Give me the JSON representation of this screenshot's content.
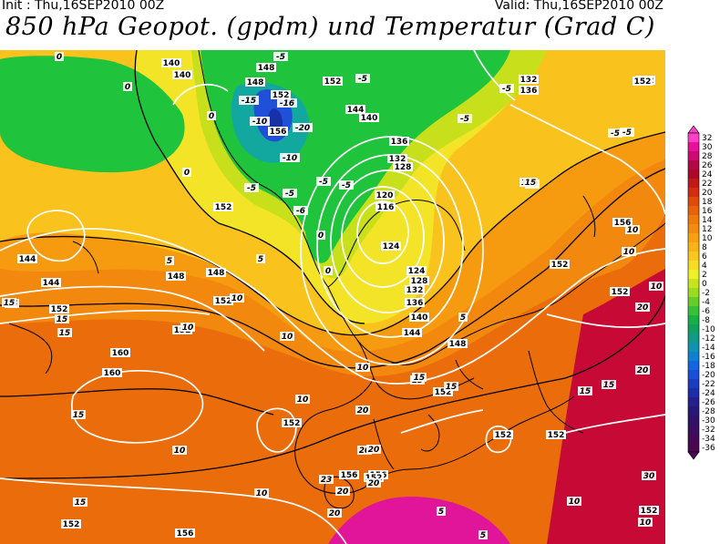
{
  "header": {
    "init": "Init : Thu,16SEP2010 00Z",
    "valid": "Valid: Thu,16SEP2010 00Z",
    "title": "850 hPa Geopot. (gpdm) und Temperatur (Grad C)"
  },
  "colors": {
    "warm_30": "#c2003a",
    "warm_20": "#d4300e",
    "warm_15": "#e25c0a",
    "warm_12": "#f07a0c",
    "warm_10": "#f69a10",
    "warm_6": "#f9c21c",
    "warm_3": "#f4e428",
    "zero": "#c8e01c",
    "cool_m4": "#20c33c",
    "cool_m10": "#12a8a0",
    "cold_m16": "#2050d8",
    "cold_m20": "#1830a8",
    "magenta": "#e0159a",
    "geopot_line": "#ffffff",
    "iso_line": "#000000",
    "coast_line": "#000000"
  },
  "legend": {
    "labels": [
      "32",
      "30",
      "28",
      "26",
      "24",
      "22",
      "20",
      "18",
      "16",
      "14",
      "12",
      "10",
      "8",
      "6",
      "4",
      "2",
      "0",
      "-2",
      "-4",
      "-6",
      "-8",
      "-10",
      "-12",
      "-14",
      "-16",
      "-18",
      "-20",
      "-22",
      "-24",
      "-26",
      "-28",
      "-30",
      "-32",
      "-34",
      "-36"
    ],
    "colors": [
      "#ff40c8",
      "#e8109c",
      "#cc0a70",
      "#b20848",
      "#ac0a2a",
      "#c01a18",
      "#d42c10",
      "#e04a0c",
      "#e8620c",
      "#ee7a0c",
      "#f28c0e",
      "#f6a012",
      "#f8b416",
      "#f9c81c",
      "#f6dc24",
      "#eef028",
      "#c8e41e",
      "#9cdc20",
      "#66cc2a",
      "#38c036",
      "#18b044",
      "#10a060",
      "#109a88",
      "#1092b0",
      "#1080d0",
      "#1466e0",
      "#184ed8",
      "#1c3cc0",
      "#1e2ea8",
      "#24208c",
      "#2a1878",
      "#30126a",
      "#3a0e60",
      "#440a58",
      "#4e0652"
    ]
  },
  "labels": {
    "geopotential": [
      "140",
      "140",
      "132",
      "136",
      "152",
      "148",
      "148",
      "152",
      "156",
      "152",
      "144",
      "140",
      "136",
      "132",
      "128",
      "120",
      "116",
      "124",
      "124",
      "128",
      "132",
      "136",
      "140",
      "144",
      "148",
      "152",
      "156",
      "160",
      "152",
      "152",
      "144",
      "144",
      "148",
      "152",
      "148",
      "152",
      "160",
      "156",
      "156",
      "152",
      "152",
      "152",
      "152",
      "152",
      "152",
      "152",
      "152",
      "156",
      "152"
    ],
    "temperature": [
      "0",
      "0",
      "0",
      "0",
      "-5",
      "-5",
      "-10",
      "-16",
      "-20",
      "-15",
      "-10",
      "-5",
      "-5",
      "-5",
      "-5",
      "-6",
      "-5",
      "0",
      "0",
      "-5",
      "-5",
      "-5",
      "5",
      "5",
      "10",
      "5",
      "10",
      "15",
      "15",
      "15",
      "10",
      "10",
      "10",
      "15",
      "15",
      "20",
      "20",
      "20",
      "23",
      "20",
      "20",
      "10",
      "10",
      "15",
      "15",
      "15",
      "10",
      "5",
      "5",
      "15",
      "20",
      "20",
      "10",
      "10",
      "10",
      "15",
      "15",
      "15",
      "10",
      "10",
      "15",
      "20",
      "30"
    ]
  }
}
